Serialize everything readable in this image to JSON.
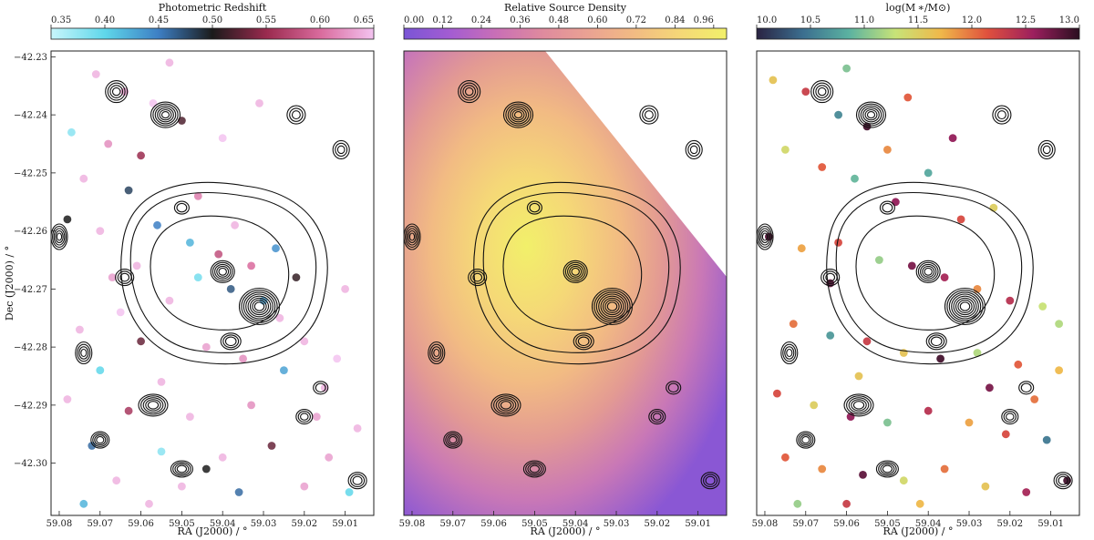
{
  "chart_data": [
    {
      "type": "scatter",
      "panel": "left",
      "colorbar": {
        "title": "Photometric Redshift",
        "range": [
          0.35,
          0.65
        ],
        "ticks": [
          "0.35",
          "0.40",
          "0.45",
          "0.50",
          "0.55",
          "0.60",
          "0.65"
        ],
        "cmap": [
          "#c8f6fb",
          "#5fd7ea",
          "#3d7fc4",
          "#1b1b1b",
          "#9a2a4e",
          "#d96a9c",
          "#f3c3f0"
        ]
      },
      "xlabel": "RA (J2000) / °",
      "ylabel": "Dec (J2000) / °",
      "xlim": [
        59.082,
        59.003
      ],
      "ylim": [
        -42.309,
        -42.229
      ],
      "xticks": [
        "59.08",
        "59.07",
        "59.06",
        "59.05",
        "59.04",
        "59.03",
        "59.02",
        "59.01"
      ],
      "yticks": [
        "−42.23",
        "−42.24",
        "−42.25",
        "−42.26",
        "−42.27",
        "−42.28",
        "−42.29",
        "−42.30"
      ],
      "points": [
        [
          59.071,
          -42.233,
          0.64
        ],
        [
          59.064,
          -42.236,
          0.63
        ],
        [
          59.057,
          -42.238,
          0.65
        ],
        [
          59.05,
          -42.241,
          0.52
        ],
        [
          59.077,
          -42.243,
          0.38
        ],
        [
          59.068,
          -42.245,
          0.62
        ],
        [
          59.06,
          -42.247,
          0.55
        ],
        [
          59.074,
          -42.251,
          0.64
        ],
        [
          59.063,
          -42.253,
          0.48
        ],
        [
          59.046,
          -42.254,
          0.61
        ],
        [
          59.078,
          -42.258,
          0.5
        ],
        [
          59.07,
          -42.26,
          0.64
        ],
        [
          59.056,
          -42.259,
          0.45
        ],
        [
          59.048,
          -42.262,
          0.42
        ],
        [
          59.041,
          -42.264,
          0.58
        ],
        [
          59.033,
          -42.266,
          0.6
        ],
        [
          59.027,
          -42.263,
          0.44
        ],
        [
          59.022,
          -42.268,
          0.51
        ],
        [
          59.046,
          -42.268,
          0.39
        ],
        [
          59.038,
          -42.27,
          0.47
        ],
        [
          59.03,
          -42.272,
          0.43
        ],
        [
          59.053,
          -42.272,
          0.64
        ],
        [
          59.065,
          -42.274,
          0.65
        ],
        [
          59.075,
          -42.277,
          0.64
        ],
        [
          59.06,
          -42.279,
          0.53
        ],
        [
          59.044,
          -42.28,
          0.63
        ],
        [
          59.035,
          -42.282,
          0.62
        ],
        [
          59.02,
          -42.279,
          0.64
        ],
        [
          59.012,
          -42.282,
          0.65
        ],
        [
          59.07,
          -42.284,
          0.4
        ],
        [
          59.055,
          -42.286,
          0.64
        ],
        [
          59.025,
          -42.284,
          0.43
        ],
        [
          59.078,
          -42.289,
          0.64
        ],
        [
          59.063,
          -42.291,
          0.56
        ],
        [
          59.048,
          -42.292,
          0.64
        ],
        [
          59.033,
          -42.29,
          0.62
        ],
        [
          59.017,
          -42.292,
          0.63
        ],
        [
          59.007,
          -42.294,
          0.64
        ],
        [
          59.072,
          -42.297,
          0.46
        ],
        [
          59.055,
          -42.298,
          0.38
        ],
        [
          59.04,
          -42.299,
          0.64
        ],
        [
          59.028,
          -42.297,
          0.53
        ],
        [
          59.014,
          -42.299,
          0.63
        ],
        [
          59.066,
          -42.303,
          0.64
        ],
        [
          59.05,
          -42.304,
          0.64
        ],
        [
          59.036,
          -42.305,
          0.46
        ],
        [
          59.02,
          -42.304,
          0.63
        ],
        [
          59.009,
          -42.305,
          0.4
        ],
        [
          59.074,
          -42.307,
          0.42
        ],
        [
          59.058,
          -42.307,
          0.64
        ],
        [
          59.044,
          -42.301,
          0.5
        ],
        [
          59.015,
          -42.287,
          0.64
        ],
        [
          59.031,
          -42.238,
          0.64
        ],
        [
          59.04,
          -42.244,
          0.65
        ],
        [
          59.053,
          -42.231,
          0.64
        ],
        [
          59.061,
          -42.266,
          0.64
        ],
        [
          59.067,
          -42.268,
          0.63
        ],
        [
          59.037,
          -42.259,
          0.64
        ],
        [
          59.026,
          -42.275,
          0.64
        ],
        [
          59.01,
          -42.27,
          0.64
        ]
      ]
    },
    {
      "type": "heatmap",
      "panel": "middle",
      "colorbar": {
        "title": "Relative Source Density",
        "range": [
          0.0,
          1.0
        ],
        "ticks": [
          "0.00",
          "0.12",
          "0.24",
          "0.36",
          "0.48",
          "0.60",
          "0.72",
          "0.84",
          "0.96"
        ],
        "cmap": [
          "#7a55d6",
          "#a35cd2",
          "#c96fb6",
          "#df8a9e",
          "#eaa293",
          "#f2bb83",
          "#f5d877",
          "#f2f06a"
        ]
      },
      "xlabel": "RA (J2000) / °",
      "xlim": [
        59.082,
        59.003
      ],
      "ylim": [
        -42.309,
        -42.229
      ],
      "xticks": [
        "59.08",
        "59.07",
        "59.06",
        "59.05",
        "59.04",
        "59.03",
        "59.02",
        "59.01"
      ],
      "peak": {
        "ra": 59.045,
        "dec": -42.262,
        "value": 1.0
      }
    },
    {
      "type": "scatter",
      "panel": "right",
      "colorbar": {
        "title": "log(M ∗/M⊙)",
        "range": [
          10.0,
          13.0
        ],
        "ticks": [
          "10.0",
          "10.5",
          "11.0",
          "11.5",
          "12.0",
          "12.5",
          "13.0"
        ],
        "cmap": [
          "#2a2342",
          "#3b6e8f",
          "#5bb2a1",
          "#c7e378",
          "#f0b84a",
          "#e0513d",
          "#9c1f5e",
          "#2a0f20"
        ]
      },
      "xlabel": "RA (J2000) / °",
      "xlim": [
        59.082,
        59.003
      ],
      "ylim": [
        -42.309,
        -42.229
      ],
      "xticks": [
        "59.08",
        "59.07",
        "59.06",
        "59.05",
        "59.04",
        "59.03",
        "59.02",
        "59.01"
      ],
      "points": [
        [
          59.078,
          -42.234,
          11.6
        ],
        [
          59.07,
          -42.236,
          12.3
        ],
        [
          59.062,
          -42.24,
          10.6
        ],
        [
          59.055,
          -42.242,
          12.9
        ],
        [
          59.075,
          -42.246,
          11.4
        ],
        [
          59.066,
          -42.249,
          12.1
        ],
        [
          59.058,
          -42.251,
          10.9
        ],
        [
          59.048,
          -42.255,
          12.6
        ],
        [
          59.079,
          -42.261,
          12.8
        ],
        [
          59.071,
          -42.263,
          11.8
        ],
        [
          59.062,
          -42.262,
          12.2
        ],
        [
          59.052,
          -42.265,
          11.1
        ],
        [
          59.044,
          -42.266,
          12.7
        ],
        [
          59.036,
          -42.268,
          12.5
        ],
        [
          59.028,
          -42.27,
          11.9
        ],
        [
          59.02,
          -42.272,
          12.4
        ],
        [
          59.012,
          -42.273,
          11.3
        ],
        [
          59.073,
          -42.276,
          12.0
        ],
        [
          59.064,
          -42.278,
          10.7
        ],
        [
          59.055,
          -42.279,
          12.3
        ],
        [
          59.046,
          -42.281,
          11.6
        ],
        [
          59.037,
          -42.282,
          12.9
        ],
        [
          59.028,
          -42.281,
          11.2
        ],
        [
          59.018,
          -42.283,
          12.1
        ],
        [
          59.008,
          -42.284,
          11.7
        ],
        [
          59.077,
          -42.288,
          12.2
        ],
        [
          59.068,
          -42.29,
          11.5
        ],
        [
          59.059,
          -42.292,
          12.6
        ],
        [
          59.05,
          -42.293,
          11.0
        ],
        [
          59.04,
          -42.291,
          12.4
        ],
        [
          59.03,
          -42.293,
          11.8
        ],
        [
          59.021,
          -42.295,
          12.2
        ],
        [
          59.011,
          -42.296,
          10.5
        ],
        [
          59.075,
          -42.299,
          12.1
        ],
        [
          59.066,
          -42.301,
          11.9
        ],
        [
          59.056,
          -42.302,
          12.8
        ],
        [
          59.046,
          -42.303,
          11.4
        ],
        [
          59.036,
          -42.301,
          12.0
        ],
        [
          59.026,
          -42.304,
          11.6
        ],
        [
          59.016,
          -42.305,
          12.5
        ],
        [
          59.006,
          -42.303,
          12.9
        ],
        [
          59.072,
          -42.307,
          11.1
        ],
        [
          59.06,
          -42.307,
          12.3
        ],
        [
          59.042,
          -42.307,
          11.7
        ],
        [
          59.032,
          -42.258,
          12.2
        ],
        [
          59.024,
          -42.256,
          11.5
        ],
        [
          59.04,
          -42.25,
          10.8
        ],
        [
          59.05,
          -42.246,
          11.9
        ],
        [
          59.034,
          -42.244,
          12.6
        ],
        [
          59.06,
          -42.232,
          11.0
        ],
        [
          59.045,
          -42.237,
          12.1
        ],
        [
          59.014,
          -42.289,
          12.0
        ],
        [
          59.008,
          -42.276,
          11.2
        ],
        [
          59.064,
          -42.269,
          12.8
        ],
        [
          59.057,
          -42.285,
          11.6
        ],
        [
          59.025,
          -42.287,
          12.7
        ]
      ]
    }
  ]
}
